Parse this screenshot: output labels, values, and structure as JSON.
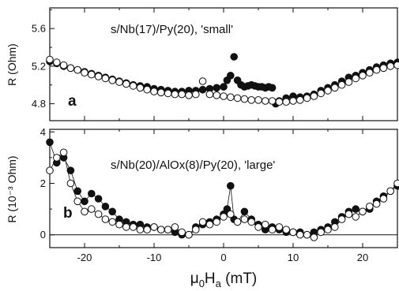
{
  "chart_data": [
    {
      "type": "scatter",
      "panel_label": "a",
      "annotation": "s/Nb(17)/Py(20), 'small'",
      "ylabel": "R (Ohm)",
      "xlim": [
        -25,
        25
      ],
      "ylim": [
        4.62,
        5.82
      ],
      "yticks": [
        4.8,
        5.2,
        5.6
      ],
      "ytick_labels": [
        "4.8",
        "5.2",
        "5.6"
      ],
      "series": [
        {
          "marker": "filled-circle",
          "x": [
            -25,
            -24,
            -23,
            -22,
            -21,
            -20,
            -19,
            -18,
            -17,
            -16,
            -15,
            -14,
            -13,
            -12,
            -11,
            -10,
            -9,
            -8,
            -7,
            -6,
            -5,
            -4,
            -3,
            -2,
            -1,
            0,
            0.5,
            1,
            1.5,
            2,
            2.5,
            3,
            3.5,
            4,
            4.5,
            5,
            5.5,
            6,
            6.5,
            7,
            7.5,
            8,
            9,
            10,
            11,
            12,
            13,
            14,
            15,
            16,
            17,
            18,
            19,
            20,
            21,
            22,
            23,
            24,
            25
          ],
          "y": [
            5.25,
            5.23,
            5.2,
            5.18,
            5.16,
            5.14,
            5.12,
            5.1,
            5.08,
            5.06,
            5.04,
            5.02,
            5.0,
            4.99,
            4.98,
            4.96,
            4.95,
            4.94,
            4.93,
            4.93,
            4.94,
            4.94,
            4.95,
            4.96,
            4.97,
            4.98,
            5.05,
            5.1,
            5.3,
            5.05,
            5.0,
            4.98,
            4.99,
            5.0,
            4.99,
            4.98,
            4.98,
            4.97,
            4.98,
            4.97,
            4.8,
            4.83,
            4.86,
            4.88,
            4.87,
            4.88,
            4.9,
            4.94,
            4.97,
            5.0,
            5.04,
            5.08,
            5.1,
            5.13,
            5.16,
            5.19,
            5.21,
            5.23,
            5.24
          ]
        },
        {
          "marker": "open-circle",
          "x": [
            -25,
            -24,
            -23,
            -22,
            -21,
            -20,
            -19,
            -18,
            -17,
            -16,
            -15,
            -14,
            -13,
            -12,
            -11,
            -10,
            -9,
            -8,
            -7,
            -6,
            -5,
            -4,
            -3,
            -2,
            -1,
            0,
            1,
            2,
            3,
            4,
            5,
            6,
            7,
            8,
            9,
            10,
            11,
            12,
            13,
            14,
            15,
            16,
            17,
            18,
            19,
            20,
            21,
            22,
            23,
            24,
            25
          ],
          "y": [
            5.27,
            5.24,
            5.21,
            5.18,
            5.16,
            5.13,
            5.11,
            5.09,
            5.07,
            5.05,
            5.03,
            5.01,
            4.99,
            4.97,
            4.95,
            4.93,
            4.92,
            4.91,
            4.9,
            4.9,
            4.89,
            4.9,
            5.04,
            4.9,
            4.89,
            4.88,
            4.87,
            4.86,
            4.85,
            4.84,
            4.84,
            4.83,
            4.83,
            4.82,
            4.82,
            4.83,
            4.84,
            4.86,
            4.88,
            4.91,
            4.94,
            4.97,
            5.0,
            5.03,
            5.07,
            5.1,
            5.13,
            5.16,
            5.18,
            5.2,
            5.21
          ]
        }
      ]
    },
    {
      "type": "line",
      "panel_label": "b",
      "annotation": "s/Nb(20)/AlOx(8)/Py(20), 'large'",
      "ylabel": "R (10⁻³ Ohm)",
      "xlabel": "μ0Ha (mT)",
      "xlim": [
        -25,
        25
      ],
      "ylim": [
        -0.5,
        4.1
      ],
      "xticks": [
        -20,
        -10,
        0,
        10,
        20
      ],
      "xtick_labels": [
        "-20",
        "-10",
        "0",
        "10",
        "20"
      ],
      "yticks": [
        0,
        2,
        4
      ],
      "ytick_labels": [
        "0",
        "2",
        "4"
      ],
      "series": [
        {
          "marker": "filled-circle",
          "x": [
            -25,
            -24,
            -23,
            -22,
            -21,
            -20,
            -19,
            -18,
            -17,
            -16,
            -15,
            -14,
            -13,
            -12,
            -11,
            -10,
            -9,
            -8,
            -7,
            -6,
            -5,
            -4,
            -3,
            -2,
            -1,
            0,
            0.5,
            1,
            1.5,
            2,
            3,
            4,
            5,
            6,
            7,
            8,
            9,
            10,
            11,
            12,
            13,
            14,
            15,
            16,
            17,
            18,
            19,
            20,
            21,
            22,
            23,
            24,
            25
          ],
          "y": [
            3.6,
            2.8,
            3.0,
            2.5,
            1.7,
            1.3,
            1.6,
            1.4,
            1.1,
            0.9,
            0.6,
            0.5,
            0.4,
            0.4,
            0.3,
            0.3,
            0.2,
            0.2,
            0.1,
            0.0,
            0.0,
            0.3,
            0.4,
            0.5,
            0.6,
            0.8,
            1.0,
            1.9,
            0.6,
            0.5,
            0.9,
            0.6,
            0.4,
            0.2,
            0.3,
            0.2,
            0.1,
            0.1,
            0.1,
            0.0,
            0.1,
            0.2,
            0.3,
            0.5,
            0.7,
            0.9,
            1.0,
            0.9,
            1.0,
            1.3,
            1.5,
            1.7,
            1.9
          ]
        },
        {
          "marker": "open-circle",
          "x": [
            -25,
            -24,
            -23,
            -22,
            -21,
            -20,
            -19,
            -18,
            -17,
            -16,
            -15,
            -14,
            -13,
            -12,
            -11,
            -10,
            -9,
            -8,
            -7,
            -6,
            -5,
            -4,
            -3,
            -2,
            -1,
            0,
            1,
            2,
            3,
            4,
            5,
            6,
            7,
            8,
            9,
            10,
            11,
            12,
            13,
            14,
            15,
            16,
            17,
            18,
            19,
            20,
            21,
            22,
            23,
            24,
            25
          ],
          "y": [
            2.5,
            3.0,
            3.2,
            2.0,
            1.3,
            0.9,
            1.0,
            0.8,
            0.6,
            0.5,
            0.4,
            0.3,
            0.3,
            0.2,
            0.2,
            0.3,
            0.2,
            0.2,
            0.3,
            0.1,
            0.0,
            0.2,
            0.5,
            0.4,
            0.5,
            0.7,
            0.8,
            0.5,
            0.6,
            0.5,
            0.3,
            0.4,
            0.2,
            0.3,
            0.2,
            0.1,
            0.0,
            0.0,
            -0.1,
            0.1,
            0.2,
            0.3,
            0.6,
            0.8,
            0.7,
            0.9,
            1.1,
            1.2,
            1.4,
            1.7,
            2.0
          ]
        }
      ]
    }
  ]
}
